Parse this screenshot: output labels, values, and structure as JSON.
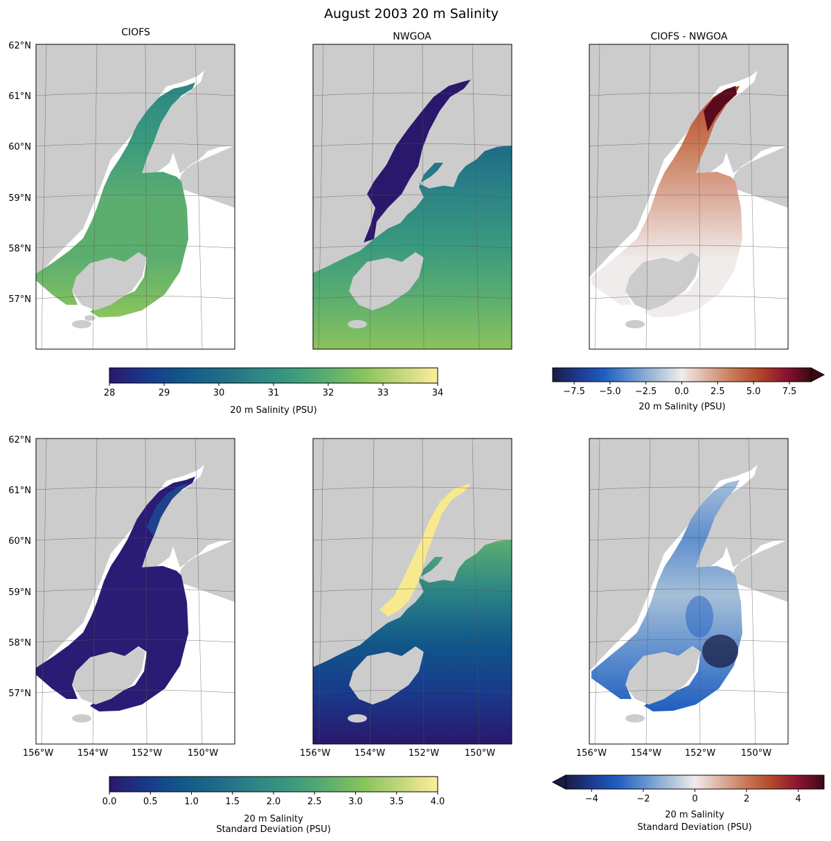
{
  "figure": {
    "title": "August 2003 20 m Salinity",
    "colors": {
      "land": "#cccccc",
      "haline": [
        "#2a186c",
        "#18398b",
        "#11588a",
        "#1f6b87",
        "#2d8585",
        "#3a9a7d",
        "#5cae6f",
        "#8ac45c",
        "#c3d77c",
        "#fdee99"
      ],
      "balance": [
        "#181c43",
        "#1d3a8f",
        "#1f5ec1",
        "#5f8fce",
        "#a6bfd8",
        "#f1ecec",
        "#dcb0a0",
        "#c97855",
        "#b2452a",
        "#8c1430",
        "#3c0912"
      ]
    }
  },
  "chart_data": [
    {
      "type": "heatmap",
      "title": "CIOFS",
      "subject": "20 m Salinity (PSU)",
      "field": "mean",
      "x_ticks": [
        "156°W",
        "154°W",
        "152°W",
        "150°W"
      ],
      "y_ticks": [
        "57°N",
        "58°N",
        "59°N",
        "60°N",
        "61°N",
        "62°N"
      ],
      "show_x_ticks": false,
      "show_y_ticks": true,
      "colormap": "haline",
      "clim": [
        28,
        34
      ]
    },
    {
      "type": "heatmap",
      "title": "NWGOA",
      "subject": "20 m Salinity (PSU)",
      "field": "mean",
      "show_x_ticks": false,
      "show_y_ticks": false,
      "colormap": "haline",
      "clim": [
        28,
        34
      ]
    },
    {
      "type": "heatmap",
      "title": "CIOFS - NWGOA",
      "subject": "20 m Salinity (PSU)",
      "field": "difference",
      "show_x_ticks": false,
      "show_y_ticks": false,
      "colormap": "balance",
      "clim": [
        -9,
        9
      ]
    },
    {
      "type": "heatmap",
      "title": "",
      "subject": "20 m Salinity Standard Deviation (PSU)",
      "field": "std",
      "x_ticks": [
        "156°W",
        "154°W",
        "152°W",
        "150°W"
      ],
      "y_ticks": [
        "57°N",
        "58°N",
        "59°N",
        "60°N",
        "61°N",
        "62°N"
      ],
      "show_x_ticks": true,
      "show_y_ticks": true,
      "colormap": "haline",
      "clim": [
        0,
        4
      ]
    },
    {
      "type": "heatmap",
      "title": "",
      "subject": "20 m Salinity Standard Deviation (PSU)",
      "field": "std",
      "x_ticks": [
        "156°W",
        "154°W",
        "152°W",
        "150°W"
      ],
      "show_x_ticks": true,
      "show_y_ticks": false,
      "colormap": "haline",
      "clim": [
        0,
        4
      ]
    },
    {
      "type": "heatmap",
      "title": "",
      "subject": "20 m Salinity Standard Deviation (PSU)",
      "field": "std difference",
      "x_ticks": [
        "156°W",
        "154°W",
        "152°W",
        "150°W"
      ],
      "show_x_ticks": true,
      "show_y_ticks": false,
      "colormap": "balance",
      "clim": [
        -5,
        5
      ]
    }
  ],
  "colorbars": [
    {
      "label": "20 m Salinity (PSU)",
      "colormap": "haline",
      "range": [
        28,
        34
      ],
      "ticks": [
        28,
        29,
        30,
        31,
        32,
        33,
        34
      ],
      "tick_labels": [
        "28",
        "29",
        "30",
        "31",
        "32",
        "33",
        "34"
      ],
      "extend": "neither"
    },
    {
      "label": "20 m Salinity (PSU)",
      "colormap": "balance",
      "range": [
        -9,
        9
      ],
      "ticks": [
        -7.5,
        -5.0,
        -2.5,
        0.0,
        2.5,
        5.0,
        7.5
      ],
      "tick_labels": [
        "−7.5",
        "−5.0",
        "−2.5",
        "0.0",
        "2.5",
        "5.0",
        "7.5"
      ],
      "extend": "max"
    },
    {
      "label": "20 m Salinity",
      "label2": "Standard Deviation (PSU)",
      "colormap": "haline",
      "range": [
        0,
        4
      ],
      "ticks": [
        0,
        0.5,
        1.0,
        1.5,
        2.0,
        2.5,
        3.0,
        3.5,
        4.0
      ],
      "tick_labels": [
        "0.0",
        "0.5",
        "1.0",
        "1.5",
        "2.0",
        "2.5",
        "3.0",
        "3.5",
        "4.0"
      ],
      "extend": "neither"
    },
    {
      "label": "20 m Salinity",
      "label2": "Standard Deviation (PSU)",
      "colormap": "balance",
      "range": [
        -5,
        5
      ],
      "ticks": [
        -4,
        -2,
        0,
        2,
        4
      ],
      "tick_labels": [
        "−4",
        "−2",
        "0",
        "2",
        "4"
      ],
      "extend": "min"
    }
  ]
}
